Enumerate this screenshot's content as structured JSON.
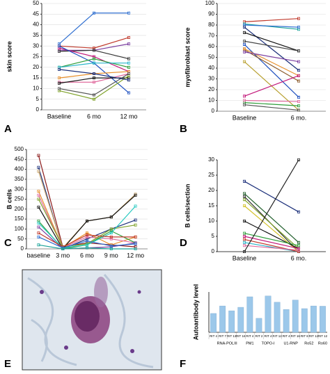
{
  "panel_labels": [
    "A",
    "B",
    "C",
    "D",
    "E",
    "F"
  ],
  "chart_data": [
    {
      "type": "line",
      "ylabel": "skin score",
      "categories": [
        "Baseline",
        "6 mo",
        "12 mo"
      ],
      "ylim": [
        0,
        50
      ],
      "yticks": [
        0,
        5,
        10,
        15,
        20,
        25,
        30,
        35,
        40,
        45,
        50
      ],
      "grid": true,
      "series": [
        {
          "color": "#2f6fd0",
          "values": [
            31,
            45.5,
            45.5
          ]
        },
        {
          "color": "#c0392b",
          "values": [
            30,
            29,
            34
          ]
        },
        {
          "color": "#7b3fa0",
          "values": [
            28,
            28,
            31
          ]
        },
        {
          "color": "#333333",
          "values": [
            27.5,
            28,
            24
          ]
        },
        {
          "color": "#c2187a",
          "values": [
            29,
            25,
            18
          ]
        },
        {
          "color": "#1d4fbf",
          "values": [
            30,
            22,
            8
          ]
        },
        {
          "color": "#2e9d3a",
          "values": [
            20,
            24,
            20
          ]
        },
        {
          "color": "#27b5c9",
          "values": [
            20,
            22,
            22
          ]
        },
        {
          "color": "#e8902c",
          "values": [
            15,
            17,
            18
          ]
        },
        {
          "color": "#e06c9f",
          "values": [
            13,
            13,
            17
          ]
        },
        {
          "color": "#111111",
          "values": [
            12.5,
            15,
            15
          ]
        },
        {
          "color": "#7fa22a",
          "values": [
            9,
            5,
            16
          ]
        },
        {
          "color": "#555555",
          "values": [
            10,
            7,
            17
          ]
        },
        {
          "color": "#1b2f7a",
          "values": [
            19,
            17,
            14
          ]
        }
      ]
    },
    {
      "type": "line",
      "ylabel": "myofibroblast score",
      "categories": [
        "Baseline",
        "6 mo."
      ],
      "ylim": [
        0,
        100
      ],
      "yticks": [
        0,
        10,
        20,
        30,
        40,
        50,
        60,
        70,
        80,
        90,
        100
      ],
      "grid": true,
      "series": [
        {
          "color": "#c0392b",
          "values": [
            83,
            86
          ]
        },
        {
          "color": "#1aa39a",
          "values": [
            81,
            76
          ]
        },
        {
          "color": "#2f6fd0",
          "values": [
            80,
            78
          ]
        },
        {
          "color": "#1b2f7a",
          "values": [
            78,
            38
          ]
        },
        {
          "color": "#111111",
          "values": [
            73,
            56
          ]
        },
        {
          "color": "#444444",
          "values": [
            65,
            56
          ]
        },
        {
          "color": "#1d4fbf",
          "values": [
            62,
            13
          ]
        },
        {
          "color": "#8b5a2b",
          "values": [
            57,
            28
          ]
        },
        {
          "color": "#e8902c",
          "values": [
            58,
            33
          ]
        },
        {
          "color": "#7b3fa0",
          "values": [
            55,
            46
          ]
        },
        {
          "color": "#b8a030",
          "values": [
            46,
            1
          ]
        },
        {
          "color": "#c2187a",
          "values": [
            14,
            33
          ]
        },
        {
          "color": "#2e9d3a",
          "values": [
            8,
            5
          ]
        },
        {
          "color": "#e06c9f",
          "values": [
            10,
            9
          ]
        },
        {
          "color": "#555555",
          "values": [
            6,
            1
          ]
        }
      ]
    },
    {
      "type": "line",
      "ylabel": "B cells",
      "categories": [
        "baseline",
        "3 mo",
        "6 mo",
        "9 mo",
        "12 mo"
      ],
      "ylim": [
        0,
        500
      ],
      "yticks": [
        0,
        50,
        100,
        150,
        200,
        250,
        300,
        350,
        400,
        450,
        500
      ],
      "grid": true,
      "series": [
        {
          "color": "#8b1a1a",
          "values": [
            470,
            10,
            30,
            20,
            10
          ]
        },
        {
          "color": "#1b2f7a",
          "values": [
            410,
            0,
            50,
            100,
            145
          ]
        },
        {
          "color": "#c8a46a",
          "values": [
            390,
            5,
            140,
            160,
            275
          ]
        },
        {
          "color": "#e8902c",
          "values": [
            290,
            5,
            80,
            20,
            60
          ]
        },
        {
          "color": "#e06c9f",
          "values": [
            270,
            5,
            60,
            50,
            30
          ]
        },
        {
          "color": "#7fa22a",
          "values": [
            250,
            10,
            25,
            100,
            120
          ]
        },
        {
          "color": "#111111",
          "values": [
            210,
            0,
            140,
            160,
            270
          ]
        },
        {
          "color": "#2e9d3a",
          "values": [
            140,
            0,
            20,
            90,
            30
          ]
        },
        {
          "color": "#27c9c0",
          "values": [
            130,
            5,
            20,
            80,
            215
          ]
        },
        {
          "color": "#7b3fa0",
          "values": [
            110,
            0,
            5,
            10,
            30
          ]
        },
        {
          "color": "#c0392b",
          "values": [
            80,
            10,
            70,
            60,
            60
          ]
        },
        {
          "color": "#2f6fd0",
          "values": [
            60,
            5,
            40,
            15,
            25
          ]
        },
        {
          "color": "#1aa39a",
          "values": [
            20,
            0,
            5,
            0,
            0
          ]
        }
      ]
    },
    {
      "type": "line",
      "ylabel": "B cells/section",
      "categories": [
        "Baseline",
        "6 mo."
      ],
      "ylim": [
        0,
        30
      ],
      "yticks": [
        0,
        5,
        10,
        15,
        20,
        25,
        30
      ],
      "grid": false,
      "series": [
        {
          "color": "#1b2f7a",
          "values": [
            23,
            13
          ]
        },
        {
          "color": "#1f5e2a",
          "values": [
            19,
            3
          ]
        },
        {
          "color": "#333333",
          "values": [
            18,
            0
          ]
        },
        {
          "color": "#7fa22a",
          "values": [
            17,
            1
          ]
        },
        {
          "color": "#d4c227",
          "values": [
            15,
            0
          ]
        },
        {
          "color": "#111111",
          "values": [
            10,
            1
          ]
        },
        {
          "color": "#c2187a",
          "values": [
            5,
            1
          ]
        },
        {
          "color": "#2e9d3a",
          "values": [
            6,
            2
          ]
        },
        {
          "color": "#27b5c9",
          "values": [
            3,
            0
          ]
        },
        {
          "color": "#c0392b",
          "values": [
            4,
            0
          ]
        },
        {
          "color": "#e06c9f",
          "values": [
            2,
            0.5
          ]
        },
        {
          "color": "#222222",
          "values": [
            0,
            30
          ]
        }
      ]
    },
    {
      "type": "bar",
      "ylabel": "Autoantibody level",
      "ylim": [
        0,
        1.5
      ],
      "color": "#9cc8ea",
      "groups": [
        {
          "name": "RNA-POLIII",
          "categories": [
            "RIT 4",
            "RIT 7",
            "RIT 13",
            "RIT 16"
          ],
          "values": [
            0.7,
            0.98,
            0.8,
            0.93
          ]
        },
        {
          "name": "PM1",
          "categories": [
            "RIT 4"
          ],
          "values": [
            1.32
          ]
        },
        {
          "name": "TOPO-I",
          "categories": [
            "RIT 2",
            "RIT 4",
            "RIT 12"
          ],
          "values": [
            0.52,
            1.35,
            1.12
          ]
        },
        {
          "name": "U1-RNP",
          "categories": [
            "RIT 4",
            "RIT 16"
          ],
          "values": [
            0.85,
            1.2
          ]
        },
        {
          "name": "Ro52",
          "categories": [
            "RIT 8",
            "RIT 12"
          ],
          "values": [
            0.88,
            0.98
          ]
        },
        {
          "name": "Ro60",
          "categories": [
            "RIT 12"
          ],
          "values": [
            0.97
          ]
        }
      ]
    }
  ]
}
